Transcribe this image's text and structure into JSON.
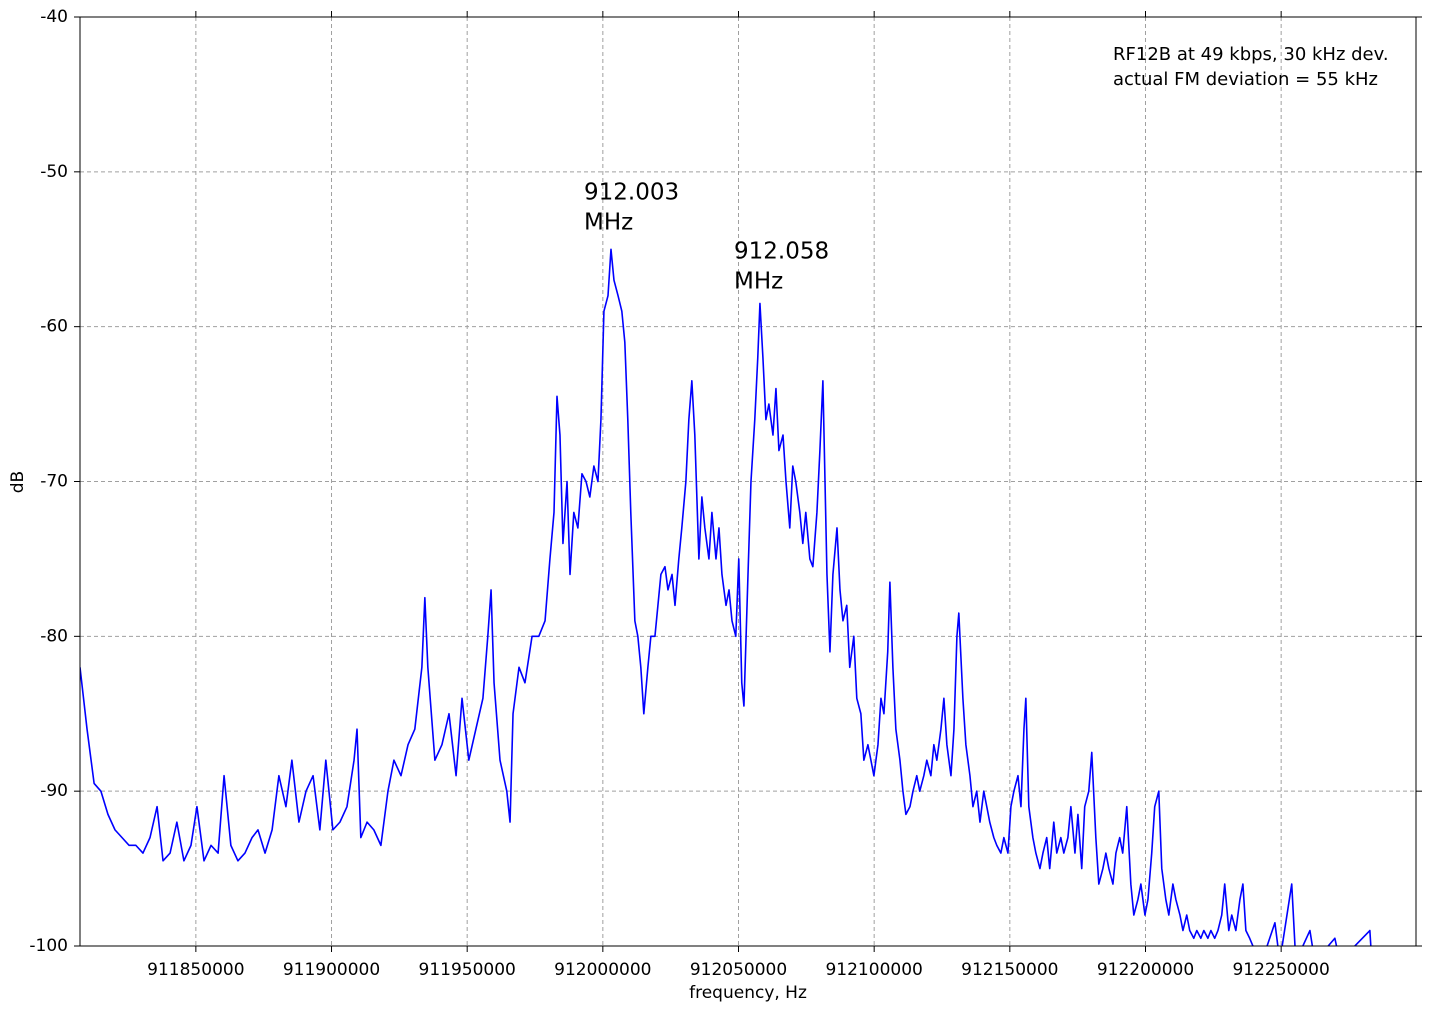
{
  "chart_data": {
    "type": "line",
    "x_label": "frequency, Hz",
    "y_label": "dB",
    "note": [
      "RF12B at 49 kbps, 30 kHz dev.",
      "actual FM deviation = 55 kHz"
    ],
    "annotations": [
      [
        "912.003",
        "MHz"
      ],
      [
        "912.058",
        "MHz"
      ]
    ],
    "xlim": [
      911807300,
      912299700
    ],
    "ylim": [
      -100,
      -40
    ],
    "xticks": [
      911850000,
      911900000,
      911950000,
      912000000,
      912050000,
      912100000,
      912150000,
      912200000,
      912250000
    ],
    "yticks": [
      -100,
      -90,
      -80,
      -70,
      -60,
      -50,
      -40
    ],
    "grid": true,
    "series": [
      {
        "color": "#0000ff",
        "x": [
          911807300,
          911809900,
          911812500,
          911815000,
          911817600,
          911820200,
          911822800,
          911825400,
          911827900,
          911830500,
          911833100,
          911835700,
          911837900,
          911840500,
          911843000,
          911845600,
          911848200,
          911850400,
          911853000,
          911855600,
          911858200,
          911860400,
          911862900,
          911865500,
          911868100,
          911870700,
          911872900,
          911875500,
          911878100,
          911880600,
          911883200,
          911885400,
          911888000,
          911890600,
          911893200,
          911895700,
          911897900,
          911900500,
          911903100,
          911905700,
          911908300,
          911909400,
          911910800,
          911913100,
          911915600,
          911918200,
          911920800,
          911923000,
          911925600,
          911928200,
          911930700,
          911933300,
          911934400,
          911935500,
          911938100,
          911940700,
          911943300,
          911945900,
          911948100,
          911950600,
          911953200,
          911955800,
          911957600,
          911958800,
          911959900,
          911962100,
          911964600,
          911965800,
          911966900,
          911969100,
          911971300,
          911973900,
          911976400,
          911978700,
          911980500,
          911982000,
          911983100,
          911984200,
          911985300,
          911986800,
          911987900,
          911989300,
          911990800,
          911992300,
          911993800,
          911995200,
          911996700,
          911998200,
          911999300,
          912000400,
          912001900,
          912003000,
          912004100,
          912005600,
          912007000,
          912008100,
          912009200,
          912010300,
          912011800,
          912012900,
          912014000,
          912015100,
          912016600,
          912017700,
          912019200,
          912020300,
          912021400,
          912022900,
          912024000,
          912025500,
          912026600,
          912028000,
          912029100,
          912030600,
          912031700,
          912032800,
          912033900,
          912035400,
          912036500,
          912037600,
          912039100,
          912040200,
          912041700,
          912042800,
          912043900,
          912045400,
          912046500,
          912047600,
          912049000,
          912050100,
          912051200,
          912052000,
          912053500,
          912054600,
          912056000,
          912057100,
          912057900,
          912059000,
          912060100,
          912061200,
          912062700,
          912063800,
          912064900,
          912066400,
          912067500,
          912068900,
          912070000,
          912071100,
          912072600,
          912073700,
          912074800,
          912076300,
          912077400,
          912078900,
          912080000,
          912081100,
          912082600,
          912083700,
          912084800,
          912086300,
          912087400,
          912088500,
          912089900,
          912091000,
          912092500,
          912093600,
          912095100,
          912096200,
          912097700,
          912098800,
          912099900,
          912101400,
          912102500,
          912103600,
          912105000,
          912105800,
          912106900,
          912108000,
          912109500,
          912110600,
          912111700,
          912113200,
          912114300,
          912115700,
          912116800,
          912118300,
          912119400,
          912120900,
          912122000,
          912123100,
          912124600,
          912125700,
          912126800,
          912128300,
          912129400,
          912130500,
          912131200,
          912132700,
          912133800,
          912135300,
          912136400,
          912137800,
          912139000,
          912140400,
          912141500,
          912142600,
          912144100,
          912145200,
          912146700,
          912147800,
          912149300,
          912150400,
          912151500,
          912153000,
          912154100,
          912155200,
          912155900,
          912157000,
          912158500,
          912159600,
          912161100,
          912162200,
          912163600,
          912164700,
          912166200,
          912167300,
          912168800,
          912169900,
          912171400,
          912172500,
          912174000,
          912175100,
          912176500,
          912177600,
          912179100,
          912180200,
          912181700,
          912182800,
          912184300,
          912185400,
          912186500,
          912188000,
          912189100,
          912190500,
          912191600,
          912193100,
          912194600,
          912195700,
          912197200,
          912198300,
          912199800,
          912200900,
          912202300,
          912203400,
          912204900,
          912206000,
          912207500,
          912208600,
          912210100,
          912211200,
          912212700,
          912213800,
          912215200,
          912216300,
          912217800,
          912218900,
          912220400,
          912221500,
          912223000,
          912224100,
          912225500,
          912226700,
          912228100,
          912229200,
          912230700,
          912231800,
          912233300,
          912234800,
          912235900,
          912237000,
          912238400,
          912239600,
          912242900,
          912247700,
          912249500,
          912253900,
          912255400,
          912260600,
          912262400,
          912269800,
          912271600,
          912282700,
          912283400
        ],
        "values": [
          -82,
          -86,
          -89.5,
          -90,
          -91.5,
          -92.5,
          -93,
          -93.5,
          -93.5,
          -94,
          -93,
          -91,
          -94.5,
          -94,
          -92,
          -94.5,
          -93.5,
          -91,
          -94.5,
          -93.5,
          -94,
          -89,
          -93.5,
          -94.5,
          -94,
          -93,
          -92.5,
          -94,
          -92.5,
          -89,
          -91,
          -88,
          -92,
          -90,
          -89,
          -92.5,
          -88,
          -92.5,
          -92,
          -91,
          -88,
          -86,
          -93,
          -92,
          -92.5,
          -93.5,
          -90,
          -88,
          -89,
          -87,
          -86,
          -82,
          -77.5,
          -82,
          -88,
          -87,
          -85,
          -89,
          -84,
          -88,
          -86,
          -84,
          -80,
          -77,
          -83,
          -88,
          -90,
          -92,
          -85,
          -82,
          -83,
          -80,
          -80,
          -79,
          -75,
          -72,
          -64.5,
          -67,
          -74,
          -70,
          -76,
          -72,
          -73,
          -69.5,
          -70,
          -71,
          -69,
          -70,
          -66,
          -59,
          -58,
          -55,
          -57,
          -58,
          -59,
          -61,
          -66,
          -72,
          -79,
          -80,
          -82,
          -85,
          -82,
          -80,
          -80,
          -78,
          -76,
          -75.5,
          -77,
          -76,
          -78,
          -75,
          -73,
          -70,
          -66,
          -63.5,
          -67,
          -75,
          -71,
          -73,
          -75,
          -72,
          -75,
          -73,
          -76,
          -78,
          -77,
          -79,
          -80,
          -75,
          -83,
          -84.5,
          -76,
          -70,
          -66,
          -62,
          -58.5,
          -62,
          -66,
          -65,
          -67,
          -64,
          -68,
          -67,
          -70,
          -73,
          -69,
          -70,
          -72,
          -74,
          -72,
          -75,
          -75.5,
          -72,
          -68,
          -63.5,
          -76,
          -81,
          -76,
          -73,
          -77,
          -79,
          -78,
          -82,
          -80,
          -84,
          -85,
          -88,
          -87,
          -88,
          -89,
          -87,
          -84,
          -85,
          -81,
          -76.5,
          -82,
          -86,
          -88,
          -90,
          -91.5,
          -91,
          -90,
          -89,
          -90,
          -89,
          -88,
          -89,
          -87,
          -88,
          -86,
          -84,
          -87,
          -89,
          -86,
          -80,
          -78.5,
          -84,
          -87,
          -89,
          -91,
          -90,
          -92,
          -90,
          -91,
          -92,
          -93,
          -93.5,
          -94,
          -93,
          -94,
          -91,
          -90,
          -89,
          -91,
          -86,
          -84,
          -91,
          -93,
          -94,
          -95,
          -94,
          -93,
          -95,
          -92,
          -94,
          -93,
          -94,
          -93,
          -91,
          -94,
          -91.5,
          -95,
          -91,
          -90,
          -87.5,
          -93,
          -96,
          -95,
          -94,
          -95,
          -96,
          -94,
          -93,
          -94,
          -91,
          -96,
          -98,
          -97,
          -96,
          -98,
          -97,
          -94,
          -91,
          -90,
          -95,
          -97,
          -98,
          -96,
          -97,
          -98,
          -99,
          -98,
          -99,
          -99.5,
          -99,
          -99.5,
          -99,
          -99.5,
          -99,
          -99.5,
          -99,
          -98,
          -96,
          -99,
          -98,
          -99,
          -97,
          -96,
          -99,
          -99.5,
          -100,
          -101,
          -98.5,
          -101,
          -96,
          -101,
          -99,
          -101,
          -99.5,
          -101,
          -99,
          -101
        ]
      }
    ]
  }
}
